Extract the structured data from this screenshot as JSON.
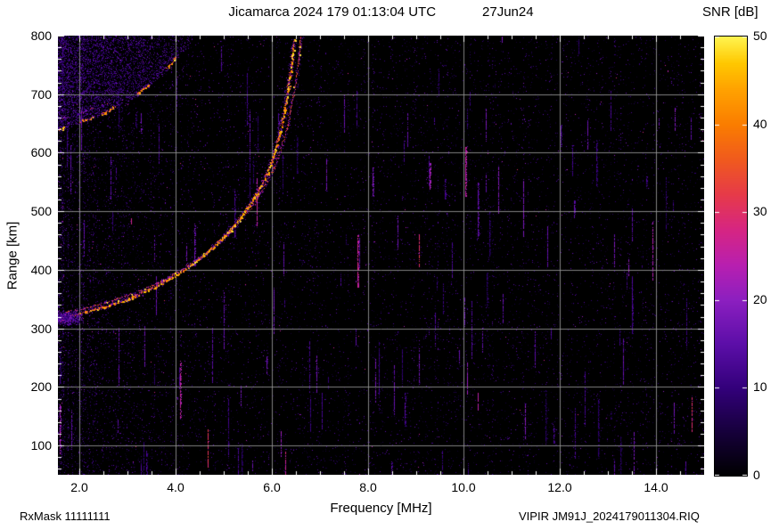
{
  "chart_data": {
    "type": "heatmap",
    "title": "Jicamarca 2024 179 01:13:04 UTC",
    "date_label": "27Jun24",
    "xlabel": "Frequency [MHz]",
    "ylabel": "Range [km]",
    "colorbar_label": "SNR [dB]",
    "x_range": [
      1.55,
      15.0
    ],
    "y_range": [
      50,
      800
    ],
    "snr_range": [
      0,
      50
    ],
    "x_ticks": [
      2,
      4,
      6,
      8,
      10,
      12,
      14
    ],
    "x_tick_labels": [
      "2.0",
      "4.0",
      "6.0",
      "8.0",
      "10.0",
      "12.0",
      "14.0"
    ],
    "y_ticks": [
      100,
      200,
      300,
      400,
      500,
      600,
      700,
      800
    ],
    "y_tick_labels": [
      "800",
      "700",
      "600",
      "500",
      "400",
      "300",
      "200",
      "100"
    ],
    "colorbar_ticks": [
      0,
      10,
      20,
      30,
      40,
      50
    ],
    "colorbar_tick_labels": [
      "0",
      "10",
      "20",
      "30",
      "40",
      "50"
    ],
    "grid": true,
    "legend": "none",
    "noise_seed": 1337,
    "palette": [
      [
        0.0,
        "#000000"
      ],
      [
        0.1,
        "#16003b"
      ],
      [
        0.2,
        "#33007b"
      ],
      [
        0.3,
        "#5c0ea8"
      ],
      [
        0.4,
        "#8c1fc0"
      ],
      [
        0.48,
        "#b81fb0"
      ],
      [
        0.56,
        "#d62583"
      ],
      [
        0.64,
        "#e63a4a"
      ],
      [
        0.72,
        "#f05a1e"
      ],
      [
        0.8,
        "#fa7d00"
      ],
      [
        0.88,
        "#ffa200"
      ],
      [
        0.94,
        "#ffc800"
      ],
      [
        1.0,
        "#fff450"
      ]
    ],
    "traces": [
      {
        "name": "F-layer O-mode echo",
        "critical_frequency_mhz": 6.5,
        "points": [
          [
            1.55,
            318
          ],
          [
            1.8,
            322
          ],
          [
            2.1,
            328
          ],
          [
            2.5,
            337
          ],
          [
            3.0,
            351
          ],
          [
            3.5,
            369
          ],
          [
            4.0,
            392
          ],
          [
            4.4,
            414
          ],
          [
            4.8,
            441
          ],
          [
            5.1,
            466
          ],
          [
            5.4,
            496
          ],
          [
            5.7,
            533
          ],
          [
            5.9,
            566
          ],
          [
            6.05,
            600
          ],
          [
            6.18,
            640
          ],
          [
            6.3,
            690
          ],
          [
            6.38,
            735
          ],
          [
            6.44,
            780
          ],
          [
            6.47,
            795
          ]
        ],
        "snr_core": [
          27,
          47
        ],
        "snr_halo": [
          8,
          20
        ],
        "core_w": 1.6,
        "halo_w": 4.5,
        "core_density": 1.6,
        "halo_density": 1.6,
        "dashed": false
      },
      {
        "name": "F-layer X-mode echo",
        "derive_from": 0,
        "offset_mhz": 0.15,
        "offset_km": 10,
        "snr_core": [
          22,
          40
        ],
        "snr_halo": [
          7,
          16
        ],
        "core_w": 1.4,
        "halo_w": 3.5,
        "core_density": 0.8,
        "halo_density": 0.8,
        "dashed": false
      },
      {
        "name": "second-hop echo",
        "points": [
          [
            1.55,
            640
          ],
          [
            2.0,
            653
          ],
          [
            2.5,
            669
          ],
          [
            3.0,
            691
          ],
          [
            3.4,
            714
          ],
          [
            3.8,
            744
          ],
          [
            4.1,
            772
          ],
          [
            4.35,
            796
          ]
        ],
        "snr_core": [
          26,
          46
        ],
        "snr_halo": [
          8,
          18
        ],
        "core_w": 1.5,
        "halo_w": 5,
        "core_density": 1.2,
        "halo_density": 1.0,
        "dashed": true,
        "dash_len": 9,
        "dash_duty": 0.6
      },
      {
        "name": "second-hop X-mode echo",
        "derive_from": 2,
        "offset_mhz": 0.08,
        "offset_km": 18,
        "snr_core": [
          18,
          34
        ],
        "snr_halo": [
          6,
          14
        ],
        "core_w": 1.3,
        "halo_w": 4,
        "core_density": 0.6,
        "halo_density": 0.6,
        "dashed": true,
        "dash_len": 8,
        "dash_duty": 0.4
      }
    ],
    "diffuse_region": {
      "description": "spread scatter above second-hop trace (top-left)",
      "f_min": 1.55,
      "f_max": 4.5,
      "snr": [
        5,
        16
      ],
      "density": 0.34
    },
    "background_noise": {
      "base_density": 0.03,
      "low_freq_boost": 0.055,
      "snr": [
        3,
        16
      ],
      "vertical_streaks": 150
    }
  },
  "footer": {
    "rx_mask": "RxMask 11111111",
    "file_label": "VIPIR JM91J_2024179011304.RIQ"
  }
}
